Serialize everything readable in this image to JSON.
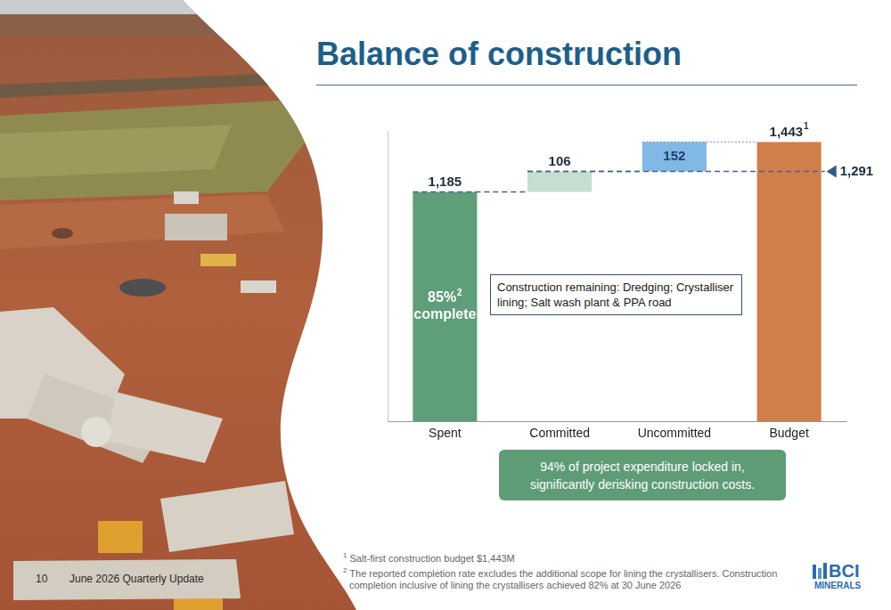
{
  "header": {
    "title": "Balance of construction"
  },
  "chart_data": {
    "type": "waterfall",
    "categories": [
      "Spent",
      "Committed",
      "Uncommitted",
      "Budget"
    ],
    "values": [
      1185,
      106,
      152,
      1443
    ],
    "colors": [
      "#5e9e78",
      "#c5ded0",
      "#82b8e6",
      "#cf7f4a"
    ],
    "data_labels": true,
    "value_labels": [
      "1,185",
      "106",
      "152",
      "1,443"
    ],
    "value_label_marks": [
      null,
      null,
      null,
      "1"
    ],
    "ylim": [
      0,
      1500
    ],
    "tick_labels": "x",
    "grid": false,
    "reference_line": {
      "value": 1291,
      "label": "1,291"
    },
    "inner_label": {
      "category": "Spent",
      "lines": [
        "85%",
        "complete"
      ],
      "mark": "2"
    },
    "annotation": "Construction remaining: Dredging; Crystalliser lining; Salt wash plant & PPA road"
  },
  "callout": {
    "lines": [
      "94% of project expenditure locked in,",
      "significantly derisking construction costs."
    ]
  },
  "footnotes": [
    {
      "mark": "1",
      "text": "Salt-first construction budget $1,443M"
    },
    {
      "mark": "2",
      "text": "The reported completion rate excludes the additional scope for lining the crystallisers. Construction completion inclusive of lining the crystallisers achieved 82% at 30 June 2026"
    }
  ],
  "footer": {
    "page": "10",
    "text": "June 2026 Quarterly Update"
  },
  "logo": {
    "text": "BCI",
    "subtext": "MINERALS"
  }
}
